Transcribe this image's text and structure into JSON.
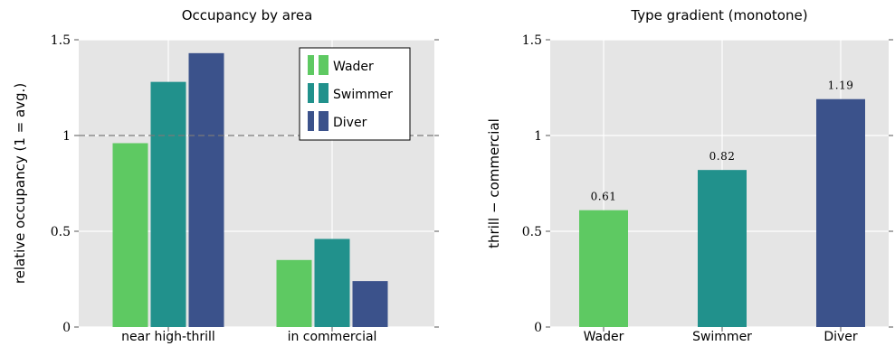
{
  "chart_data": [
    {
      "type": "bar",
      "title": "Occupancy by area",
      "xlabel": "",
      "ylabel": "relative occupancy (1 = avg.)",
      "ylim": [
        0,
        1.5
      ],
      "yticks": [
        "0",
        "0.5",
        "1",
        "1.5"
      ],
      "categories": [
        "near high-thrill",
        "in commercial"
      ],
      "series": [
        {
          "name": "Wader",
          "color": "#5ec962",
          "values": [
            0.96,
            0.35
          ]
        },
        {
          "name": "Swimmer",
          "color": "#21918c",
          "values": [
            1.28,
            0.46
          ]
        },
        {
          "name": "Diver",
          "color": "#3b528b",
          "values": [
            1.43,
            0.24
          ]
        }
      ],
      "reference_line": 1,
      "grid": true,
      "legend": "top-right"
    },
    {
      "type": "bar",
      "title": "Type gradient (monotone)",
      "xlabel": "",
      "ylabel": "thrill − commercial",
      "ylim": [
        0,
        1.5
      ],
      "yticks": [
        "0",
        "0.5",
        "1",
        "1.5"
      ],
      "categories": [
        "Wader",
        "Swimmer",
        "Diver"
      ],
      "values": [
        0.61,
        0.82,
        1.19
      ],
      "data_labels": [
        "0.61",
        "0.82",
        "1.19"
      ],
      "colors": [
        "#5ec962",
        "#21918c",
        "#3b528b"
      ],
      "grid": true
    }
  ]
}
